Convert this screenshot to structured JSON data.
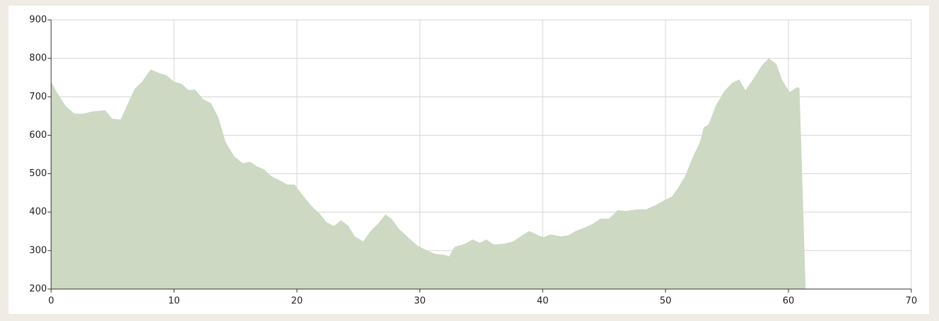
{
  "chart_data": {
    "type": "area",
    "color": "#cdd9c3",
    "grid": true,
    "x": [
      0,
      0.46,
      1.2,
      1.9,
      2.6,
      3.35,
      4.4,
      4.97,
      5.66,
      6.8,
      7.4,
      8.1,
      8.84,
      9.4,
      10,
      10.6,
      11.2,
      11.7,
      12.4,
      13,
      13.6,
      14.2,
      14.9,
      15.6,
      16.2,
      16.8,
      17.3,
      17.9,
      18.7,
      19.2,
      19.8,
      20.7,
      21.3,
      21.8,
      22.4,
      23,
      23.6,
      24.2,
      24.7,
      25.4,
      26,
      26.6,
      27.2,
      27.7,
      28.3,
      29.1,
      29.8,
      30.5,
      31.2,
      32,
      32.4,
      32.8,
      33.7,
      34.3,
      34.9,
      35.4,
      36,
      36.9,
      37.6,
      38.3,
      38.9,
      39.7,
      40.1,
      40.6,
      41.5,
      42.1,
      42.7,
      43.5,
      44.1,
      44.7,
      45.4,
      46.1,
      46.8,
      47.6,
      48.4,
      49.3,
      49.9,
      50.5,
      51,
      51.6,
      52.2,
      52.8,
      53.1,
      53.5,
      54.1,
      54.8,
      55.4,
      56,
      56.5,
      57.2,
      57.8,
      58.4,
      59,
      59.5,
      60.1,
      60.7,
      60.9,
      61.4
    ],
    "values": [
      739,
      712,
      675,
      656,
      656,
      662,
      665,
      643,
      641,
      721,
      739,
      771,
      761,
      756,
      739,
      734,
      717,
      719,
      693,
      684,
      647,
      582,
      545,
      527,
      531,
      518,
      512,
      494,
      481,
      472,
      472,
      435,
      412,
      398,
      374,
      364,
      379,
      364,
      337,
      324,
      351,
      370,
      394,
      383,
      357,
      333,
      313,
      302,
      292,
      289,
      285,
      309,
      318,
      329,
      320,
      329,
      316,
      318,
      324,
      339,
      351,
      339,
      335,
      342,
      337,
      340,
      351,
      361,
      370,
      383,
      383,
      405,
      403,
      407,
      407,
      420,
      431,
      440,
      462,
      494,
      542,
      582,
      620,
      628,
      678,
      715,
      736,
      745,
      717,
      749,
      780,
      800,
      786,
      743,
      712,
      725,
      723,
      200
    ],
    "xlim": [
      0,
      70
    ],
    "xticks": [
      0,
      10,
      20,
      30,
      40,
      50,
      60,
      70
    ],
    "ylim": [
      200,
      900
    ],
    "yticks": [
      200,
      300,
      400,
      500,
      600,
      700,
      800,
      900
    ]
  }
}
